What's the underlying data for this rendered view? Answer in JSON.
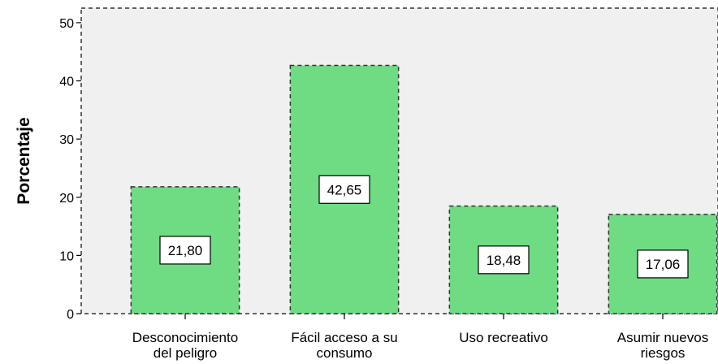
{
  "chart_data": {
    "type": "bar",
    "categories": [
      [
        "Desconocimiento",
        "del peligro"
      ],
      [
        "Fácil acceso a su",
        "consumo"
      ],
      [
        "Uso recreativo"
      ],
      [
        "Asumir nuevos",
        "riesgos"
      ]
    ],
    "values": [
      21.8,
      42.65,
      18.48,
      17.06
    ],
    "data_labels": [
      "21,80",
      "42,65",
      "18,48",
      "17,06"
    ],
    "ylabel": "Porcentaje",
    "xlabel": "",
    "ylim": [
      0,
      52.5
    ],
    "yticks": [
      0,
      10,
      20,
      30,
      40,
      50
    ],
    "grid": false,
    "colors": {
      "plot_background": "#f0f0f0",
      "bar_fill": "#6fdc84",
      "bar_stroke": "#333333"
    }
  }
}
